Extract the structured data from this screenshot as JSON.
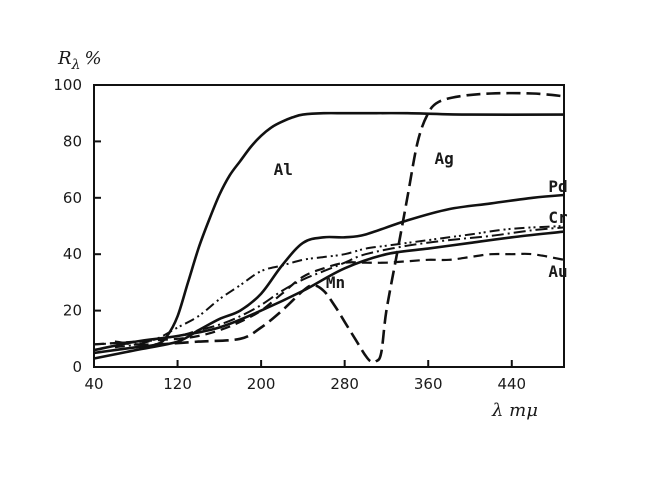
{
  "chart_data": {
    "type": "line",
    "ylabel": "R",
    "ylabel_sub": "λ",
    "ylabel_unit": "%",
    "xlabel": "λ mμ",
    "xlim": [
      40,
      490
    ],
    "ylim": [
      0,
      100
    ],
    "xticks": [
      40,
      120,
      200,
      280,
      360,
      440
    ],
    "yticks": [
      0,
      20,
      40,
      60,
      80,
      100
    ],
    "grid": false,
    "series": [
      {
        "name": "Al",
        "style": "solid",
        "x": [
          40,
          60,
          80,
          100,
          110,
          120,
          130,
          140,
          150,
          160,
          170,
          180,
          190,
          200,
          210,
          220,
          230,
          240,
          260,
          280,
          300,
          340,
          400,
          490
        ],
        "y": [
          5,
          6,
          7,
          8,
          11,
          18,
          30,
          42,
          52,
          61,
          68,
          73,
          78,
          82,
          85,
          87,
          88.5,
          89.5,
          90,
          90,
          90,
          90,
          89.5,
          89.5
        ]
      },
      {
        "name": "Ag",
        "style": "dashed",
        "x": [
          60,
          80,
          100,
          140,
          180,
          200,
          220,
          240,
          250,
          260,
          270,
          280,
          290,
          300,
          305,
          310,
          315,
          320,
          330,
          340,
          350,
          360,
          370,
          390,
          420,
          460,
          490
        ],
        "y": [
          9,
          8,
          8,
          9,
          10,
          14,
          20,
          27,
          29,
          27,
          22,
          16,
          10,
          4,
          2,
          2,
          5,
          20,
          40,
          60,
          80,
          90,
          94,
          96,
          97,
          97,
          96
        ]
      },
      {
        "name": "Pd",
        "style": "solid",
        "x": [
          40,
          80,
          120,
          140,
          160,
          180,
          200,
          220,
          240,
          260,
          280,
          300,
          340,
          380,
          420,
          460,
          490
        ],
        "y": [
          3,
          6,
          9,
          13,
          17,
          20,
          26,
          36,
          44,
          46,
          46,
          47,
          52,
          56,
          58,
          60,
          61
        ]
      },
      {
        "name": "Cr",
        "style": "dash-dot",
        "x": [
          40,
          80,
          120,
          140,
          160,
          180,
          200,
          220,
          240,
          260,
          280,
          300,
          340,
          380,
          420,
          460,
          490
        ],
        "y": [
          8,
          9,
          11,
          13,
          15,
          18,
          22,
          27,
          31,
          34,
          37,
          40,
          43,
          45,
          46.5,
          48.5,
          49.5
        ]
      },
      {
        "name": "Mn",
        "style": "dash-dot-dot",
        "x": [
          60,
          80,
          100,
          120,
          140,
          160,
          180,
          200,
          220,
          240,
          260,
          280,
          300,
          320,
          340,
          360,
          380,
          400,
          440,
          490
        ],
        "y": [
          7,
          8,
          10,
          14,
          18,
          24,
          29,
          34,
          36,
          38,
          39,
          40,
          42,
          43,
          44,
          45,
          46,
          47,
          49,
          50
        ]
      },
      {
        "name": "Au",
        "style": "long-dash",
        "x": [
          40,
          80,
          120,
          140,
          160,
          180,
          200,
          220,
          240,
          260,
          280,
          300,
          320,
          340,
          360,
          380,
          400,
          420,
          440,
          460,
          490
        ],
        "y": [
          8,
          9,
          10,
          11,
          13,
          16,
          20,
          26,
          32,
          35,
          37,
          37,
          37,
          37.5,
          38,
          38,
          39,
          40,
          40,
          40,
          38
        ]
      },
      {
        "name": "",
        "style": "solid",
        "x": [
          40,
          80,
          120,
          160,
          200,
          240,
          280,
          320,
          360,
          400,
          440,
          490
        ],
        "y": [
          6,
          9,
          11,
          14,
          20,
          27,
          35,
          40,
          42,
          44,
          46,
          48
        ]
      }
    ],
    "annotations": [
      {
        "text": "Al",
        "x": 212,
        "y": 68
      },
      {
        "text": "Ag",
        "x": 366,
        "y": 72
      },
      {
        "text": "Pd",
        "x": 475,
        "y": 62
      },
      {
        "text": "Cr",
        "x": 475,
        "y": 51
      },
      {
        "text": "Mn",
        "x": 262,
        "y": 28
      },
      {
        "text": "Au",
        "x": 475,
        "y": 32
      }
    ]
  }
}
